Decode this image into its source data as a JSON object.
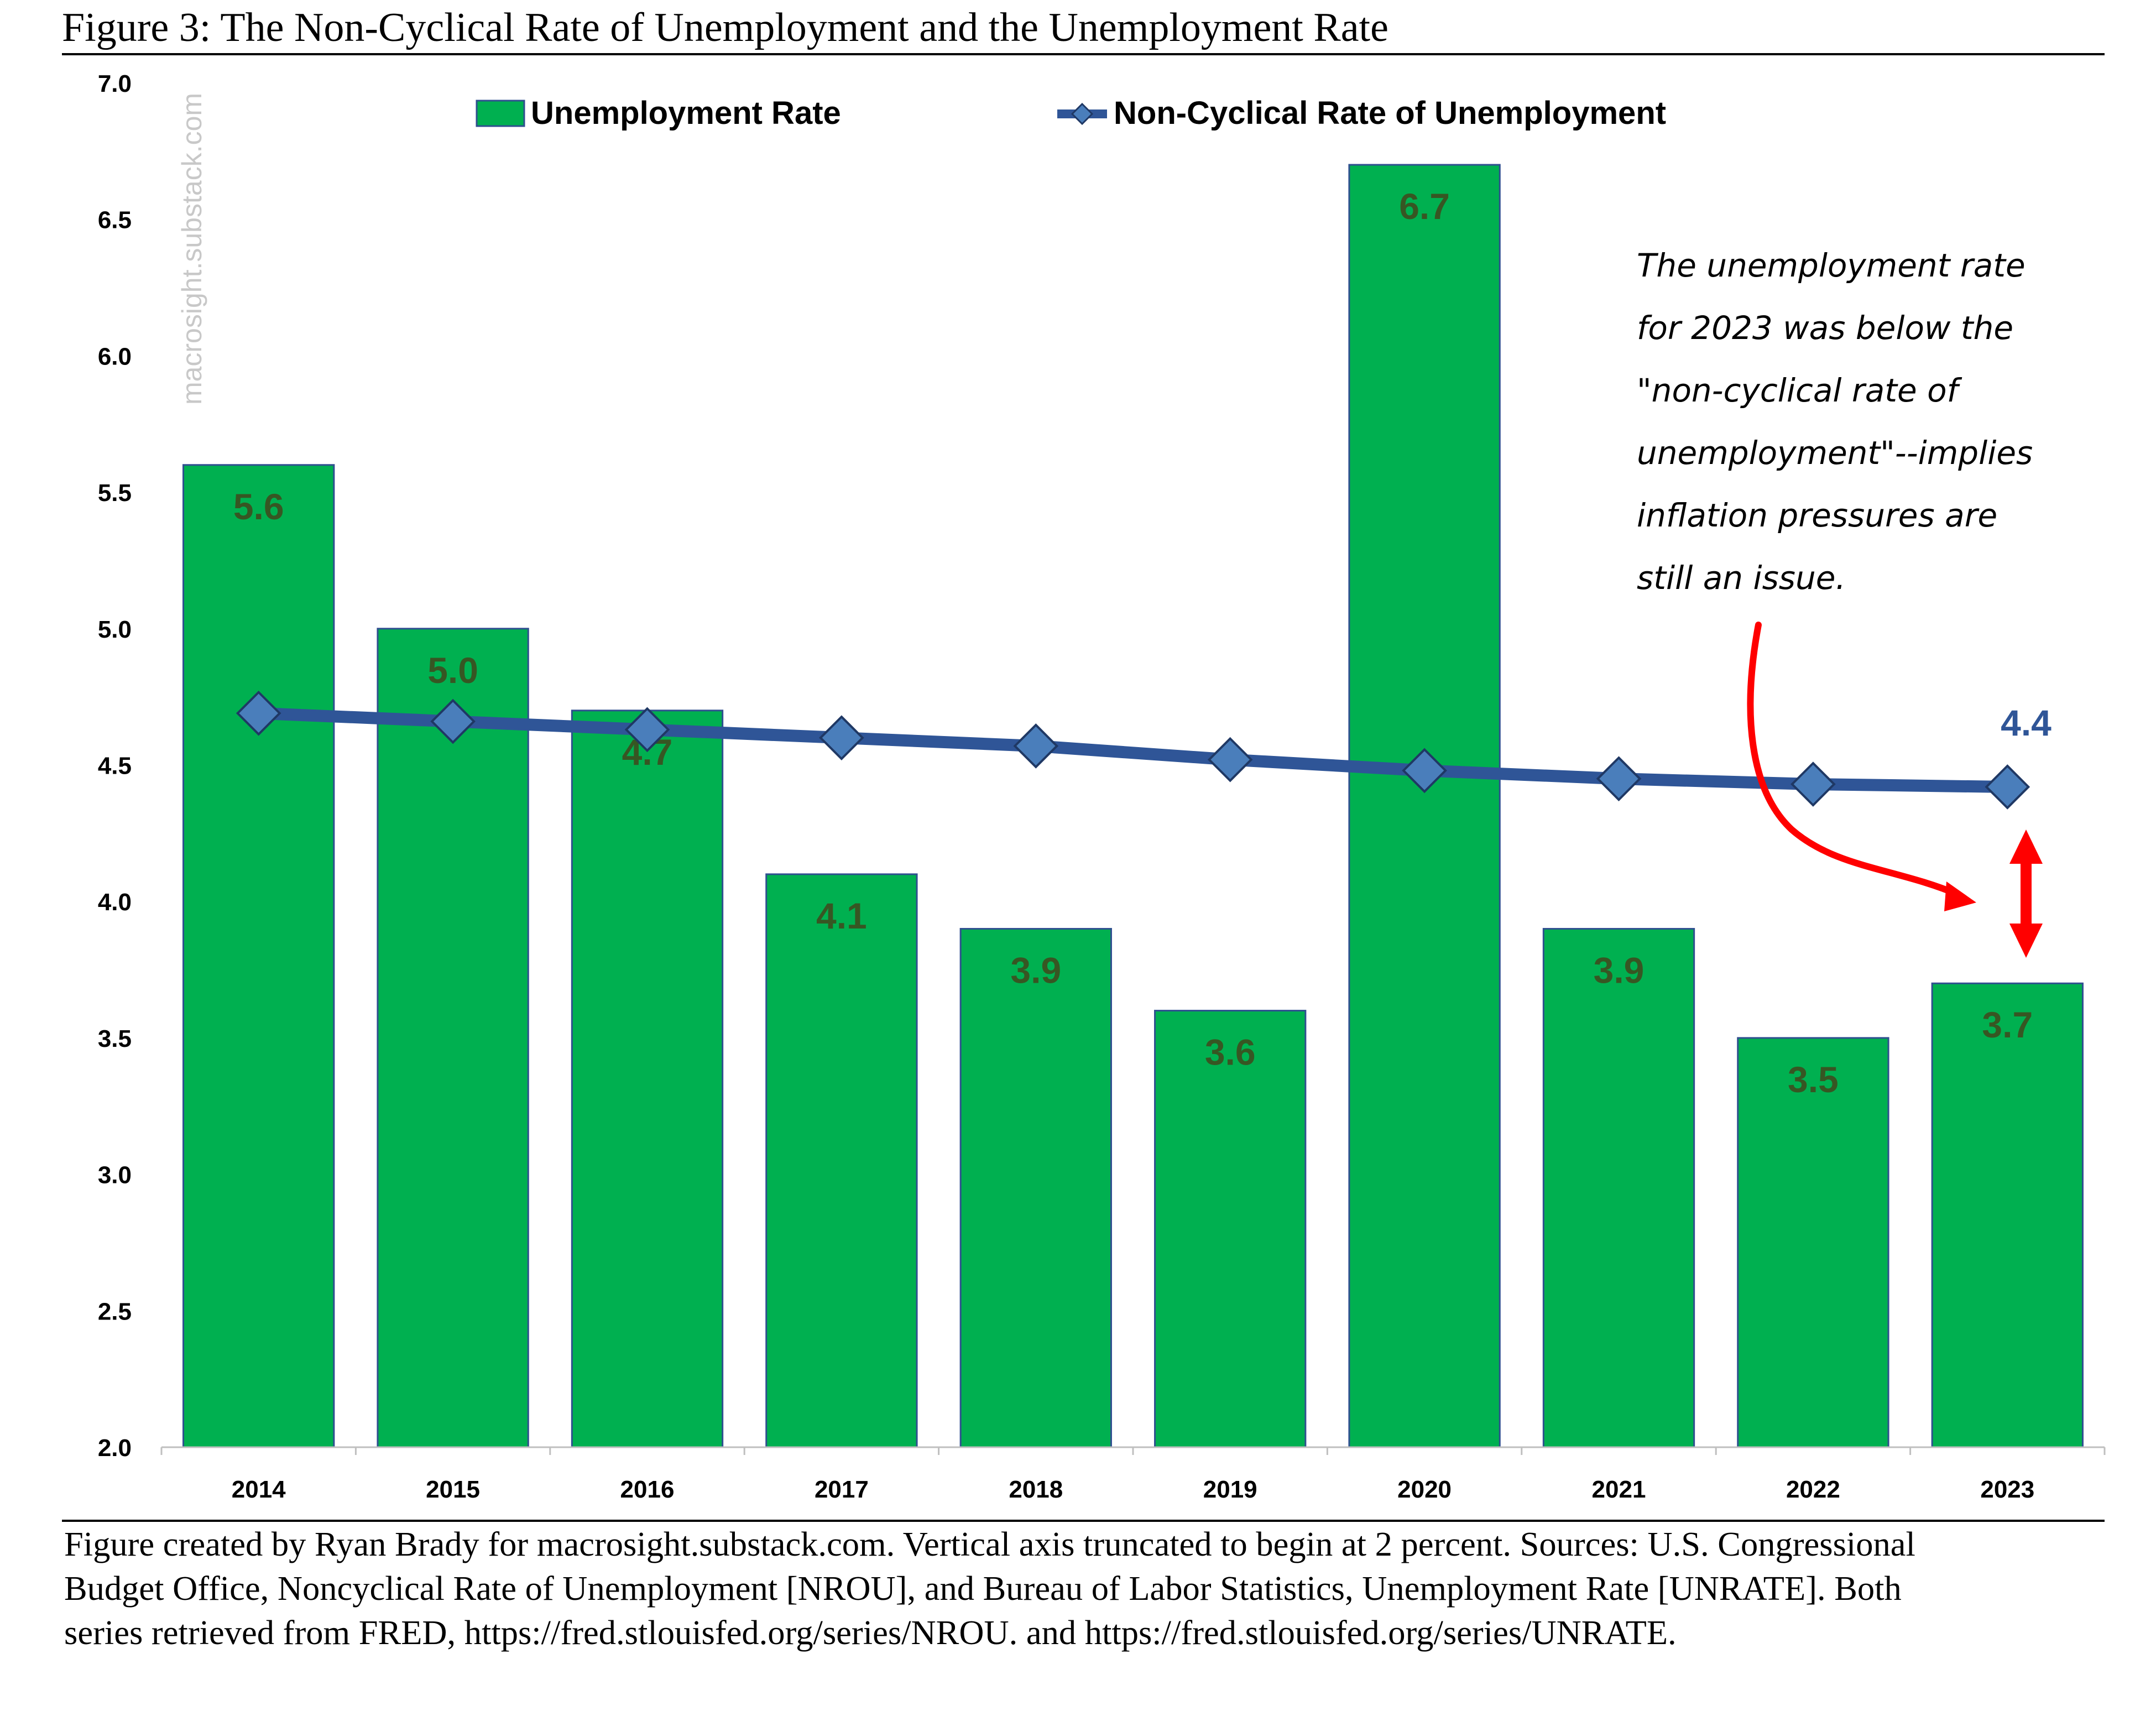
{
  "figure_title": "Figure 3: The Non-Cyclical Rate of Unemployment and the Unemployment Rate",
  "watermark": "macrosight.substack.com",
  "legend": {
    "bar_label": "Unemployment Rate",
    "line_label": "Non-Cyclical Rate of Unemployment"
  },
  "annotation": {
    "lines": [
      "The unemployment rate",
      "for 2023 was below the",
      "\"non-cyclical rate of",
      "unemployment\"--implies",
      "inflation pressures are",
      "still an issue."
    ],
    "line_end_label": "4.4"
  },
  "caption": [
    "Figure created by Ryan Brady for macrosight.substack.com. Vertical axis truncated to begin at 2 percent. Sources: U.S. Congressional",
    "Budget Office, Noncyclical Rate of Unemployment [NROU], and Bureau of Labor Statistics, Unemployment Rate [UNRATE]. Both",
    "series retrieved from FRED, https://fred.stlouisfed.org/series/NROU. and https://fred.stlouisfed.org/series/UNRATE."
  ],
  "colors": {
    "bar_fill": "#00b050",
    "bar_stroke": "#2f4f8f",
    "bar_label": "#375623",
    "line": "#2f5597",
    "marker": "#4a7ebb",
    "end_label": "#2f5597",
    "arrow": "#ff0000"
  },
  "chart_data": {
    "type": "bar+line",
    "categories": [
      "2014",
      "2015",
      "2016",
      "2017",
      "2018",
      "2019",
      "2020",
      "2021",
      "2022",
      "2023"
    ],
    "series": [
      {
        "name": "Unemployment Rate",
        "type": "bar",
        "values": [
          5.6,
          5.0,
          4.7,
          4.1,
          3.9,
          3.6,
          6.7,
          3.9,
          3.5,
          3.7
        ],
        "labels": [
          "5.6",
          "5.0",
          "4.7",
          "4.1",
          "3.9",
          "3.6",
          "6.7",
          "3.9",
          "3.5",
          "3.7"
        ]
      },
      {
        "name": "Non-Cyclical Rate of Unemployment",
        "type": "line",
        "marker": "diamond",
        "values": [
          4.69,
          4.66,
          4.63,
          4.6,
          4.57,
          4.52,
          4.48,
          4.45,
          4.43,
          4.42
        ]
      }
    ],
    "ylim": [
      2.0,
      7.0
    ],
    "yticks": [
      "2.0",
      "2.5",
      "3.0",
      "3.5",
      "4.0",
      "4.5",
      "5.0",
      "5.5",
      "6.0",
      "6.5",
      "7.0"
    ],
    "grid": false,
    "legend_position": "top"
  }
}
